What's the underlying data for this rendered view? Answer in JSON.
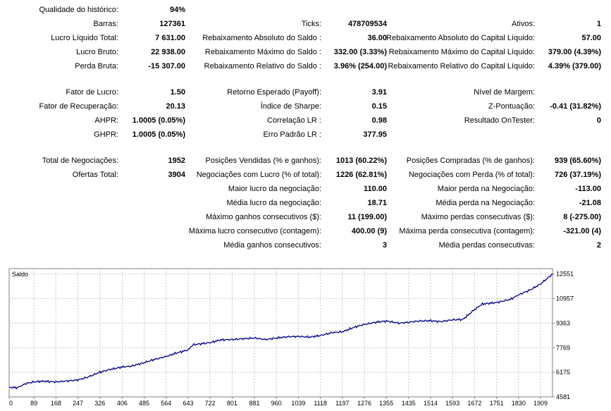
{
  "stats": {
    "history_quality": {
      "label": "Qualidade do histórico:",
      "value": "94%"
    },
    "bars": {
      "label": "Barras:",
      "value": "127361"
    },
    "ticks": {
      "label": "Ticks:",
      "value": "478709534"
    },
    "assets": {
      "label": "Ativos:",
      "value": "1"
    },
    "net_profit": {
      "label": "Lucro Líquido Total:",
      "value": "7 631.00"
    },
    "balance_dd_abs": {
      "label": "Rebaixamento Absoluto do Saldo :",
      "value": "36.00"
    },
    "equity_dd_abs": {
      "label": "Rebaixamento Absoluto do Capital Líquido:",
      "value": "57.00"
    },
    "gross_profit": {
      "label": "Lucro Bruto:",
      "value": "22 938.00"
    },
    "balance_dd_max": {
      "label": "Rebaixamento Máximo do Saldo :",
      "value": "332.00 (3.33%)"
    },
    "equity_dd_max": {
      "label": "Rebaixamento Máximo do Capital Líquido:",
      "value": "379.00 (4.39%)"
    },
    "gross_loss": {
      "label": "Perda Bruta:",
      "value": "-15 307.00"
    },
    "balance_dd_rel": {
      "label": "Rebaixamento Relativo do Saldo :",
      "value": "3.96% (254.00)"
    },
    "equity_dd_rel": {
      "label": "Rebaixamento Relativo do Capital Líquido:",
      "value": "4.39% (379.00)"
    },
    "profit_factor": {
      "label": "Fator de Lucro:",
      "value": "1.50"
    },
    "expected_payoff": {
      "label": "Retorno Esperado (Payoff):",
      "value": "3.91"
    },
    "margin_level": {
      "label": "Nível de Margem:",
      "value": ""
    },
    "recovery_factor": {
      "label": "Fator de Recuperação:",
      "value": "20.13"
    },
    "sharpe": {
      "label": "Índice de Sharpe:",
      "value": "0.15"
    },
    "z_score": {
      "label": "Z-Pontuação:",
      "value": "-0.41 (31.82%)"
    },
    "ahpr": {
      "label": "AHPR:",
      "value": "1.0005 (0.05%)"
    },
    "lr_correlation": {
      "label": "Correlação LR :",
      "value": "0.98"
    },
    "ontester": {
      "label": "Resultado OnTester:",
      "value": "0"
    },
    "ghpr": {
      "label": "GHPR:",
      "value": "1.0005 (0.05%)"
    },
    "lr_std_error": {
      "label": "Erro Padrão LR :",
      "value": "377.95"
    },
    "total_trades": {
      "label": "Total de Negociações:",
      "value": "1952"
    },
    "short_positions": {
      "label": "Posições Vendidas (% e ganhos):",
      "value": "1013 (60.22%)"
    },
    "long_positions": {
      "label": "Posições Compradas (% de ganhos):",
      "value": "939 (65.60%)"
    },
    "total_deals": {
      "label": "Ofertas Total:",
      "value": "3904"
    },
    "profit_trades": {
      "label": "Negociações com Lucro (% of total):",
      "value": "1226 (62.81%)"
    },
    "loss_trades": {
      "label": "Negociações com Perda (% of total):",
      "value": "726 (37.19%)"
    },
    "largest_profit": {
      "label": "Maior lucro da negociação:",
      "value": "110.00"
    },
    "largest_loss": {
      "label": "Maior perda na Negociação:",
      "value": "-113.00"
    },
    "avg_profit": {
      "label": "Média lucro da negociação:",
      "value": "18.71"
    },
    "avg_loss": {
      "label": "Média perda na Negociação:",
      "value": "-21.08"
    },
    "max_consec_wins": {
      "label": "Máximo ganhos consecutivos ($):",
      "value": "11 (199.00)"
    },
    "max_consec_losses": {
      "label": "Máximo perdas consecutivas ($):",
      "value": "8 (-275.00)"
    },
    "max_consec_profit": {
      "label": "Máxima lucro consecutivo (contagem):",
      "value": "400.00 (9)"
    },
    "max_consec_loss": {
      "label": "Máxima perda consecutiva (contagem):",
      "value": "-321.00 (4)"
    },
    "avg_consec_wins": {
      "label": "Média ganhos consecutivos:",
      "value": "3"
    },
    "avg_consec_losses": {
      "label": "Média perdas consecutivas:",
      "value": "2"
    }
  },
  "chart_data": {
    "type": "line",
    "title": "Saldo",
    "xlabel": "",
    "ylabel": "",
    "x_ticks": [
      0,
      89,
      168,
      247,
      326,
      406,
      485,
      564,
      643,
      722,
      801,
      881,
      960,
      1039,
      1118,
      1197,
      1276,
      1355,
      1435,
      1514,
      1593,
      1672,
      1751,
      1830,
      1909
    ],
    "y_ticks": [
      4581,
      6175,
      7769,
      9363,
      10957,
      12551
    ],
    "xlim": [
      0,
      1952
    ],
    "ylim": [
      4581,
      12900
    ],
    "grid": true,
    "legend": "none",
    "colors": {
      "line": "#00008B",
      "grid": "#c8c8c8",
      "border": "#808080"
    },
    "series": [
      {
        "name": "",
        "x": [
          0,
          30,
          60,
          89,
          120,
          168,
          200,
          247,
          280,
          326,
          360,
          406,
          440,
          485,
          520,
          564,
          600,
          643,
          660,
          700,
          722,
          760,
          801,
          840,
          881,
          920,
          960,
          1000,
          1039,
          1080,
          1118,
          1160,
          1197,
          1240,
          1276,
          1320,
          1355,
          1400,
          1435,
          1470,
          1514,
          1550,
          1593,
          1630,
          1672,
          1700,
          1751,
          1800,
          1830,
          1870,
          1909,
          1952
        ],
        "y": [
          5200,
          5180,
          5450,
          5550,
          5600,
          5550,
          5600,
          5680,
          5850,
          6180,
          6350,
          6520,
          6580,
          6800,
          7000,
          7200,
          7420,
          7630,
          7960,
          8050,
          8100,
          8280,
          8300,
          8350,
          8400,
          8300,
          8400,
          8480,
          8500,
          8460,
          8560,
          8750,
          8800,
          9100,
          9280,
          9430,
          9500,
          9360,
          9420,
          9500,
          9520,
          9460,
          9580,
          9600,
          10250,
          10600,
          10700,
          10900,
          11200,
          11500,
          11900,
          12551
        ]
      }
    ]
  }
}
